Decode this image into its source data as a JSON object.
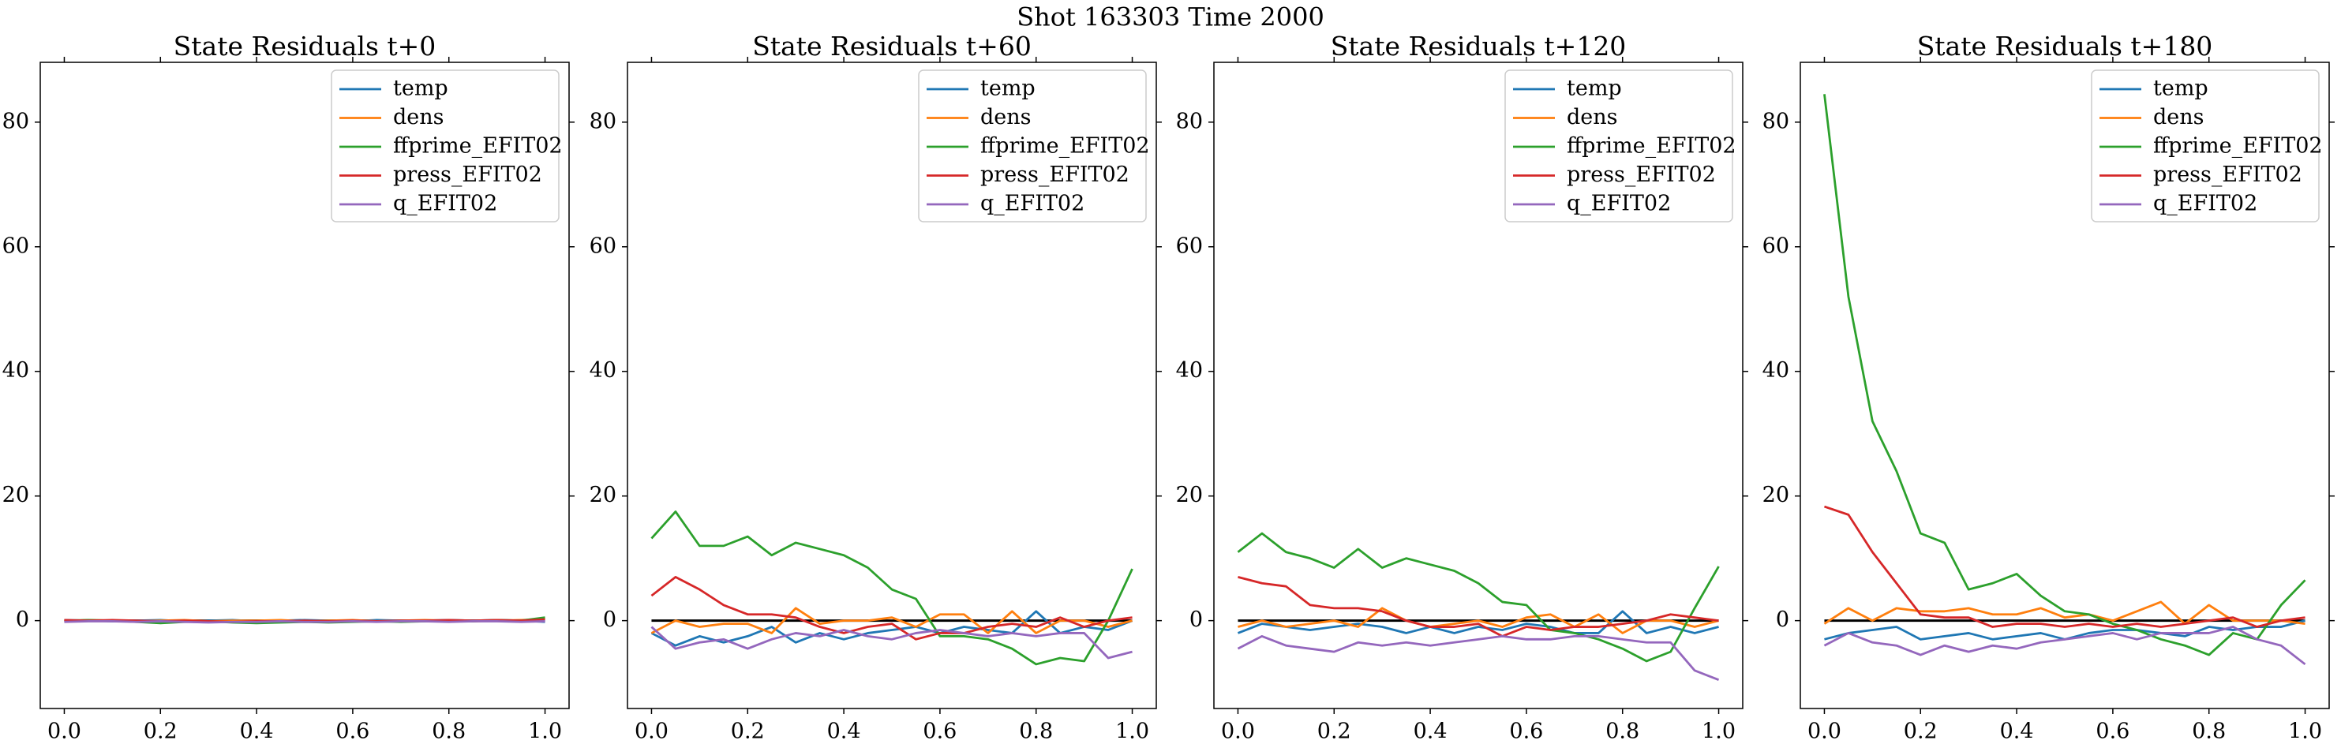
{
  "figure_title": "Shot 163303   Time 2000",
  "chart_data": [
    {
      "type": "line",
      "title": "State Residuals t+0",
      "x": [
        0,
        0.05,
        0.1,
        0.15,
        0.2,
        0.25,
        0.3,
        0.35,
        0.4,
        0.45,
        0.5,
        0.55,
        0.6,
        0.65,
        0.7,
        0.75,
        0.8,
        0.85,
        0.9,
        0.95,
        1
      ],
      "series": [
        {
          "name": "temp",
          "color": "#1f77b4",
          "values": [
            0.1,
            0.0,
            -0.1,
            0.0,
            0.1,
            -0.1,
            0.0,
            0.1,
            -0.1,
            0.0,
            0.1,
            0.0,
            -0.1,
            0.1,
            0.0,
            0.0,
            0.1,
            0.0,
            0.1,
            0.0,
            -0.2
          ]
        },
        {
          "name": "dens",
          "color": "#ff7f0e",
          "values": [
            -0.1,
            0.1,
            0.0,
            -0.1,
            0.0,
            0.1,
            -0.1,
            0.0,
            0.0,
            0.1,
            -0.1,
            0.0,
            0.1,
            -0.1,
            0.0,
            0.1,
            0.0,
            -0.1,
            0.0,
            0.1,
            0.2
          ]
        },
        {
          "name": "ffprime_EFIT02",
          "color": "#2ca02c",
          "values": [
            0.0,
            0.1,
            0.0,
            -0.2,
            -0.4,
            -0.2,
            -0.1,
            -0.3,
            -0.4,
            -0.3,
            -0.2,
            -0.3,
            -0.2,
            -0.1,
            -0.2,
            -0.1,
            0.0,
            -0.1,
            0.1,
            0.0,
            0.5
          ]
        },
        {
          "name": "press_EFIT02",
          "color": "#d62728",
          "values": [
            0.1,
            0.0,
            0.1,
            0.0,
            -0.1,
            0.0,
            -0.1,
            -0.2,
            -0.1,
            -0.1,
            0.0,
            -0.1,
            0.0,
            -0.1,
            0.0,
            0.0,
            0.1,
            0.0,
            0.1,
            0.0,
            0.2
          ]
        },
        {
          "name": "q_EFIT02",
          "color": "#9467bd",
          "values": [
            -0.2,
            -0.1,
            -0.1,
            -0.2,
            -0.1,
            -0.2,
            -0.3,
            -0.2,
            -0.2,
            -0.1,
            -0.2,
            -0.2,
            -0.1,
            -0.2,
            -0.1,
            -0.1,
            -0.2,
            -0.1,
            -0.1,
            -0.2,
            -0.1
          ]
        }
      ],
      "hline": 0,
      "xlim": [
        -0.05,
        1.05
      ],
      "ylim": [
        -14.1,
        89.6
      ],
      "xticks": [
        {
          "value": 0,
          "label": "0.0"
        },
        0.2,
        0.4,
        0.6,
        0.8,
        {
          "value": 1,
          "label": "1.0"
        }
      ],
      "yticks": [
        0,
        20,
        40,
        60,
        80
      ],
      "legend": "upper right"
    },
    {
      "type": "line",
      "title": "State Residuals t+60",
      "x": [
        0,
        0.05,
        0.1,
        0.15,
        0.2,
        0.25,
        0.3,
        0.35,
        0.4,
        0.45,
        0.5,
        0.55,
        0.6,
        0.65,
        0.7,
        0.75,
        0.8,
        0.85,
        0.9,
        0.95,
        1
      ],
      "series": [
        {
          "name": "temp",
          "color": "#1f77b4",
          "values": [
            -2,
            -4,
            -2.5,
            -3.5,
            -2.5,
            -1,
            -3.5,
            -2,
            -3,
            -2,
            -1.5,
            -1,
            -2,
            -1,
            -1.5,
            -2,
            1.5,
            -2,
            -1,
            -1.5,
            0
          ]
        },
        {
          "name": "dens",
          "color": "#ff7f0e",
          "values": [
            -2,
            0,
            -1,
            -0.5,
            -0.5,
            -2,
            2,
            -0.5,
            0,
            0,
            0.5,
            -1,
            1,
            1,
            -2,
            1.5,
            -2,
            0,
            0,
            -1,
            0
          ]
        },
        {
          "name": "ffprime_EFIT02",
          "color": "#2ca02c",
          "values": [
            13.2,
            17.5,
            12,
            12,
            13.5,
            10.5,
            12.5,
            11.5,
            10.5,
            8.5,
            5,
            3.5,
            -2.5,
            -2.5,
            -3,
            -4.5,
            -7,
            -6,
            -6.5,
            0,
            8.3
          ]
        },
        {
          "name": "press_EFIT02",
          "color": "#d62728",
          "values": [
            4,
            7,
            5,
            2.5,
            1,
            1,
            0.5,
            -1,
            -2,
            -1,
            -0.5,
            -3,
            -2,
            -2,
            -1,
            -0.5,
            -1,
            0.5,
            -1,
            0,
            0.5
          ]
        },
        {
          "name": "q_EFIT02",
          "color": "#9467bd",
          "values": [
            -1,
            -4.5,
            -3.5,
            -3,
            -4.5,
            -3,
            -2,
            -2.5,
            -1.5,
            -2.5,
            -3,
            -2,
            -1.5,
            -2,
            -2.5,
            -2,
            -2.5,
            -2,
            -2,
            -6,
            -5
          ]
        }
      ],
      "hline": 0,
      "xlim": [
        -0.05,
        1.05
      ],
      "ylim": [
        -14.1,
        89.6
      ],
      "xticks": [
        {
          "value": 0,
          "label": "0.0"
        },
        0.2,
        0.4,
        0.6,
        0.8,
        {
          "value": 1,
          "label": "1.0"
        }
      ],
      "yticks": [
        0,
        20,
        40,
        60,
        80
      ],
      "legend": "upper right"
    },
    {
      "type": "line",
      "title": "State Residuals t+120",
      "x": [
        0,
        0.05,
        0.1,
        0.15,
        0.2,
        0.25,
        0.3,
        0.35,
        0.4,
        0.45,
        0.5,
        0.55,
        0.6,
        0.65,
        0.7,
        0.75,
        0.8,
        0.85,
        0.9,
        0.95,
        1
      ],
      "series": [
        {
          "name": "temp",
          "color": "#1f77b4",
          "values": [
            -2,
            -0.5,
            -1,
            -1.5,
            -1,
            -0.5,
            -1,
            -2,
            -1,
            -2,
            -1,
            -1.5,
            -0.5,
            -1,
            -2,
            -2,
            1.5,
            -2,
            -1,
            -2,
            -1
          ]
        },
        {
          "name": "dens",
          "color": "#ff7f0e",
          "values": [
            -1,
            0,
            -1,
            -0.5,
            0,
            -1,
            2,
            0,
            -1,
            -0.5,
            0,
            -1,
            0.5,
            1,
            -1,
            1,
            -2,
            0,
            0,
            -1,
            0
          ]
        },
        {
          "name": "ffprime_EFIT02",
          "color": "#2ca02c",
          "values": [
            11,
            14,
            11,
            10,
            8.5,
            11.5,
            8.5,
            10,
            9,
            8,
            6,
            3,
            2.5,
            -1.5,
            -2,
            -3,
            -4.5,
            -6.5,
            -5,
            2,
            8.7
          ]
        },
        {
          "name": "press_EFIT02",
          "color": "#d62728",
          "values": [
            7,
            6,
            5.5,
            2.5,
            2,
            2,
            1.5,
            0,
            -1,
            -1,
            -0.5,
            -2.5,
            -1,
            -1.5,
            -1,
            -1,
            -0.5,
            0,
            1,
            0.5,
            0
          ]
        },
        {
          "name": "q_EFIT02",
          "color": "#9467bd",
          "values": [
            -4.5,
            -2.5,
            -4,
            -4.5,
            -5,
            -3.5,
            -4,
            -3.5,
            -4,
            -3.5,
            -3,
            -2.5,
            -3,
            -3,
            -2.5,
            -2.5,
            -3,
            -3.5,
            -3.5,
            -8,
            -9.5
          ]
        }
      ],
      "hline": 0,
      "xlim": [
        -0.05,
        1.05
      ],
      "ylim": [
        -14.1,
        89.6
      ],
      "xticks": [
        {
          "value": 0,
          "label": "0.0"
        },
        0.2,
        0.4,
        0.6,
        0.8,
        {
          "value": 1,
          "label": "1.0"
        }
      ],
      "yticks": [
        0,
        20,
        40,
        60,
        80
      ],
      "legend": "upper right"
    },
    {
      "type": "line",
      "title": "State Residuals t+180",
      "x": [
        0,
        0.05,
        0.1,
        0.15,
        0.2,
        0.25,
        0.3,
        0.35,
        0.4,
        0.45,
        0.5,
        0.55,
        0.6,
        0.65,
        0.7,
        0.75,
        0.8,
        0.85,
        0.9,
        0.95,
        1
      ],
      "series": [
        {
          "name": "temp",
          "color": "#1f77b4",
          "values": [
            -3,
            -2,
            -1.5,
            -1,
            -3,
            -2.5,
            -2,
            -3,
            -2.5,
            -2,
            -3,
            -2,
            -1.5,
            -1.5,
            -2,
            -2.5,
            -1,
            -1.5,
            -1,
            -1,
            0
          ]
        },
        {
          "name": "dens",
          "color": "#ff7f0e",
          "values": [
            -0.5,
            2,
            0,
            2,
            1.5,
            1.5,
            2,
            1,
            1,
            2,
            0.5,
            1,
            0,
            1.5,
            3,
            -0.5,
            2.5,
            0,
            0,
            0,
            -0.5
          ]
        },
        {
          "name": "ffprime_EFIT02",
          "color": "#2ca02c",
          "values": [
            84.5,
            52,
            32,
            24,
            14,
            12.5,
            5,
            6,
            7.5,
            4,
            1.5,
            1,
            -0.5,
            -1.5,
            -3,
            -4,
            -5.5,
            -2,
            -3,
            2.5,
            6.5
          ]
        },
        {
          "name": "press_EFIT02",
          "color": "#d62728",
          "values": [
            18.3,
            17,
            11,
            6,
            1,
            0.5,
            0.5,
            -1,
            -0.5,
            -0.5,
            -1,
            -0.5,
            -1,
            -0.5,
            -1,
            -0.5,
            0,
            0.5,
            -1,
            0,
            0.5
          ]
        },
        {
          "name": "q_EFIT02",
          "color": "#9467bd",
          "values": [
            -4,
            -2,
            -3.5,
            -4,
            -5.5,
            -4,
            -5,
            -4,
            -4.5,
            -3.5,
            -3,
            -2.5,
            -2,
            -3,
            -2,
            -2,
            -2,
            -1,
            -3,
            -4,
            -7
          ]
        }
      ],
      "hline": 0,
      "xlim": [
        -0.05,
        1.05
      ],
      "ylim": [
        -14.1,
        89.6
      ],
      "xticks": [
        {
          "value": 0,
          "label": "0.0"
        },
        0.2,
        0.4,
        0.6,
        0.8,
        {
          "value": 1,
          "label": "1.0"
        }
      ],
      "yticks": [
        0,
        20,
        40,
        60,
        80
      ],
      "legend": "upper right"
    }
  ]
}
